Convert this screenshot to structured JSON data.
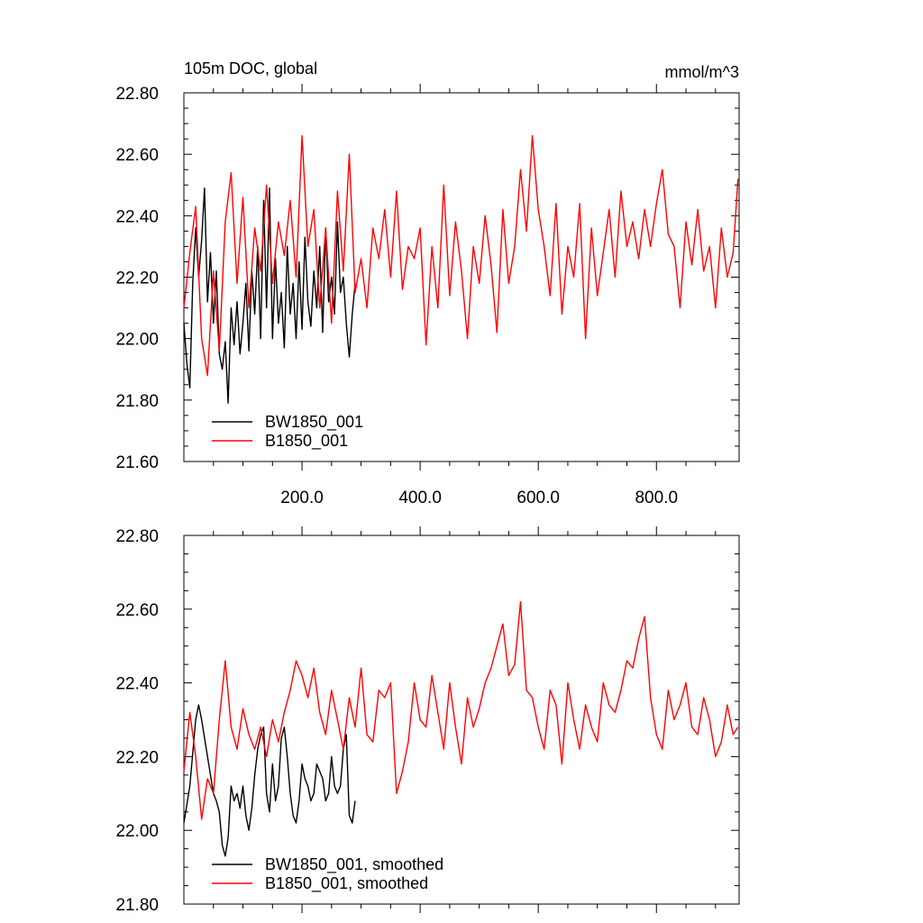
{
  "chart_data": [
    {
      "type": "line",
      "title_left": "105m DOC, global",
      "title_right": "mmol/m^3",
      "xlim": [
        0,
        940
      ],
      "ylim": [
        21.6,
        22.8
      ],
      "x_tick_labels": [
        "200.0",
        "400.0",
        "600.0",
        "800.0"
      ],
      "x_ticks": [
        200,
        400,
        600,
        800
      ],
      "y_ticks": [
        21.6,
        21.8,
        22.0,
        22.2,
        22.4,
        22.6,
        22.8
      ],
      "y_tick_labels": [
        "21.60",
        "21.80",
        "22.00",
        "22.20",
        "22.40",
        "22.60",
        "22.80"
      ],
      "legend_position": "bottom-left",
      "series": [
        {
          "name": "BW1850_001",
          "color": "#000000",
          "x": [
            0,
            5,
            10,
            15,
            20,
            25,
            30,
            35,
            40,
            45,
            50,
            55,
            60,
            65,
            70,
            75,
            80,
            85,
            90,
            95,
            100,
            105,
            110,
            115,
            120,
            125,
            130,
            135,
            140,
            145,
            150,
            155,
            160,
            165,
            170,
            175,
            180,
            185,
            190,
            195,
            200,
            205,
            210,
            215,
            220,
            225,
            230,
            235,
            240,
            245,
            250,
            255,
            260,
            265,
            270,
            275,
            280,
            285,
            290
          ],
          "values": [
            22.05,
            21.92,
            21.84,
            22.18,
            22.36,
            22.2,
            22.32,
            22.49,
            22.12,
            22.28,
            22.05,
            22.22,
            21.95,
            21.9,
            21.99,
            21.79,
            22.1,
            21.98,
            22.12,
            21.95,
            22.05,
            22.18,
            21.96,
            22.22,
            22.08,
            22.3,
            22.0,
            22.45,
            22.1,
            22.49,
            22.0,
            22.26,
            22.05,
            22.15,
            21.97,
            22.3,
            22.08,
            22.18,
            22.0,
            22.25,
            22.03,
            22.33,
            22.12,
            22.04,
            22.22,
            22.1,
            22.3,
            22.02,
            22.36,
            22.12,
            22.2,
            22.08,
            22.38,
            22.15,
            22.2,
            22.05,
            21.94,
            22.08,
            22.18
          ]
        },
        {
          "name": "B1850_001",
          "color": "#ff0000",
          "x": [
            0,
            10,
            20,
            30,
            40,
            50,
            60,
            70,
            80,
            90,
            100,
            110,
            120,
            130,
            140,
            150,
            160,
            170,
            180,
            190,
            200,
            210,
            220,
            230,
            240,
            250,
            260,
            270,
            280,
            290,
            300,
            310,
            320,
            330,
            340,
            350,
            360,
            370,
            380,
            390,
            400,
            410,
            420,
            430,
            440,
            450,
            460,
            470,
            480,
            490,
            500,
            510,
            520,
            530,
            540,
            550,
            560,
            570,
            580,
            590,
            600,
            610,
            620,
            630,
            640,
            650,
            660,
            670,
            680,
            690,
            700,
            710,
            720,
            730,
            740,
            750,
            760,
            770,
            780,
            790,
            800,
            810,
            820,
            830,
            840,
            850,
            860,
            870,
            880,
            890,
            900,
            910,
            920,
            930,
            938
          ],
          "values": [
            22.1,
            22.28,
            22.43,
            22.0,
            21.88,
            22.22,
            21.96,
            22.38,
            22.54,
            22.18,
            22.46,
            22.1,
            22.36,
            22.22,
            22.5,
            22.18,
            22.38,
            22.27,
            22.45,
            22.2,
            22.66,
            22.3,
            22.42,
            22.1,
            22.36,
            22.05,
            22.48,
            22.22,
            22.6,
            22.15,
            22.26,
            22.1,
            22.36,
            22.26,
            22.42,
            22.2,
            22.48,
            22.16,
            22.3,
            22.26,
            22.36,
            21.98,
            22.3,
            22.1,
            22.5,
            22.14,
            22.38,
            22.22,
            22.0,
            22.3,
            22.18,
            22.4,
            22.24,
            22.02,
            22.42,
            22.18,
            22.3,
            22.55,
            22.35,
            22.66,
            22.42,
            22.3,
            22.14,
            22.44,
            22.08,
            22.3,
            22.2,
            22.44,
            22.0,
            22.36,
            22.14,
            22.28,
            22.42,
            22.2,
            22.48,
            22.3,
            22.38,
            22.26,
            22.42,
            22.3,
            22.44,
            22.55,
            22.34,
            22.3,
            22.1,
            22.38,
            22.24,
            22.42,
            22.22,
            22.3,
            22.1,
            22.36,
            22.2,
            22.28,
            22.52
          ]
        }
      ]
    },
    {
      "type": "line",
      "xlim": [
        0,
        940
      ],
      "ylim": [
        21.8,
        22.8
      ],
      "y_ticks": [
        21.8,
        22.0,
        22.2,
        22.4,
        22.6,
        22.8
      ],
      "y_tick_labels": [
        "21.80",
        "22.00",
        "22.20",
        "22.40",
        "22.60",
        "22.80"
      ],
      "x_ticks": [
        200,
        400,
        600,
        800
      ],
      "legend_position": "bottom-left",
      "series": [
        {
          "name": "BW1850_001, smoothed",
          "color": "#000000",
          "x": [
            0,
            10,
            20,
            25,
            30,
            40,
            50,
            55,
            60,
            65,
            70,
            75,
            80,
            85,
            90,
            95,
            100,
            105,
            110,
            115,
            120,
            125,
            130,
            135,
            140,
            145,
            150,
            155,
            160,
            165,
            170,
            175,
            180,
            185,
            190,
            195,
            200,
            205,
            210,
            215,
            220,
            225,
            230,
            235,
            240,
            245,
            250,
            255,
            260,
            265,
            270,
            275,
            280,
            285,
            290
          ],
          "values": [
            22.02,
            22.12,
            22.3,
            22.34,
            22.3,
            22.2,
            22.1,
            22.08,
            22.05,
            21.96,
            21.93,
            21.98,
            22.12,
            22.08,
            22.1,
            22.06,
            22.12,
            22.04,
            22.0,
            22.06,
            22.15,
            22.22,
            22.26,
            22.28,
            22.1,
            22.05,
            22.18,
            22.08,
            22.12,
            22.25,
            22.28,
            22.2,
            22.1,
            22.04,
            22.02,
            22.08,
            22.18,
            22.14,
            22.12,
            22.08,
            22.1,
            22.18,
            22.16,
            22.14,
            22.08,
            22.1,
            22.2,
            22.12,
            22.1,
            22.12,
            22.22,
            22.26,
            22.04,
            22.02,
            22.08
          ]
        },
        {
          "name": "B1850_001, smoothed",
          "color": "#ff0000",
          "x": [
            0,
            10,
            20,
            30,
            40,
            50,
            60,
            70,
            80,
            90,
            100,
            110,
            120,
            130,
            140,
            150,
            160,
            170,
            180,
            190,
            200,
            210,
            220,
            230,
            240,
            250,
            260,
            270,
            280,
            290,
            300,
            310,
            320,
            330,
            340,
            350,
            360,
            370,
            380,
            390,
            400,
            410,
            420,
            430,
            440,
            450,
            460,
            470,
            480,
            490,
            500,
            510,
            520,
            530,
            540,
            550,
            560,
            570,
            580,
            590,
            600,
            610,
            620,
            630,
            640,
            650,
            660,
            670,
            680,
            690,
            700,
            710,
            720,
            730,
            740,
            750,
            760,
            770,
            780,
            790,
            800,
            810,
            820,
            830,
            840,
            850,
            860,
            870,
            880,
            890,
            900,
            910,
            920,
            930,
            938
          ],
          "values": [
            22.16,
            22.32,
            22.2,
            22.03,
            22.14,
            22.1,
            22.3,
            22.46,
            22.28,
            22.22,
            22.33,
            22.26,
            22.22,
            22.28,
            22.2,
            22.3,
            22.24,
            22.32,
            22.38,
            22.46,
            22.42,
            22.36,
            22.44,
            22.32,
            22.26,
            22.38,
            22.3,
            22.22,
            22.36,
            22.28,
            22.44,
            22.26,
            22.24,
            22.38,
            22.36,
            22.4,
            22.1,
            22.16,
            22.24,
            22.4,
            22.3,
            22.28,
            22.42,
            22.32,
            22.22,
            22.4,
            22.28,
            22.18,
            22.36,
            22.28,
            22.33,
            22.4,
            22.44,
            22.5,
            22.56,
            22.42,
            22.45,
            22.62,
            22.38,
            22.36,
            22.28,
            22.22,
            22.38,
            22.34,
            22.18,
            22.4,
            22.3,
            22.22,
            22.34,
            22.28,
            22.24,
            22.4,
            22.34,
            22.32,
            22.38,
            22.46,
            22.44,
            22.52,
            22.58,
            22.36,
            22.26,
            22.22,
            22.38,
            22.3,
            22.34,
            22.4,
            22.28,
            22.26,
            22.36,
            22.3,
            22.2,
            22.24,
            22.34,
            22.26,
            22.28
          ]
        }
      ]
    }
  ]
}
